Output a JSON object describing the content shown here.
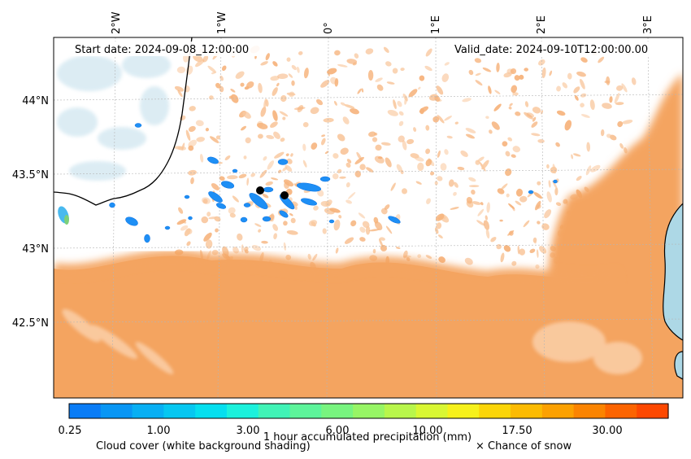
{
  "map": {
    "start_label": "Start date: 2024-09-08_12:00:00",
    "valid_label": "Valid_date: 2024-09-10T12:00:00.00",
    "lon_ticks": [
      "2°W",
      "1°W",
      "0°",
      "1°E",
      "2°E",
      "3°E"
    ],
    "lat_ticks": [
      "44°N",
      "43.5°N",
      "43°N",
      "42.5°N"
    ],
    "land_color": "#f4a460",
    "sea_color": "#add8e6",
    "markers": [
      {
        "name": "point-a",
        "color": "#000000"
      },
      {
        "name": "point-b",
        "color": "#000000"
      }
    ]
  },
  "colorbar": {
    "title": "1 hour accumulated precipitation (mm)",
    "tick_labels": [
      "0.25",
      "1.00",
      "3.00",
      "6.00",
      "10.00",
      "17.50",
      "30.00"
    ],
    "colors": [
      "#0a7cf6",
      "#0996f4",
      "#08aff3",
      "#06c7f1",
      "#05dfef",
      "#1bf1dc",
      "#40f3b6",
      "#5df49a",
      "#78f47f",
      "#97f565",
      "#b8f64b",
      "#d9f733",
      "#f6f11b",
      "#fbd508",
      "#fcbb02",
      "#fca101",
      "#fb8401",
      "#fc6400",
      "#fd4800"
    ],
    "cloud_note": "Cloud cover (white background shading)",
    "snow_note": "× Chance of snow"
  }
}
